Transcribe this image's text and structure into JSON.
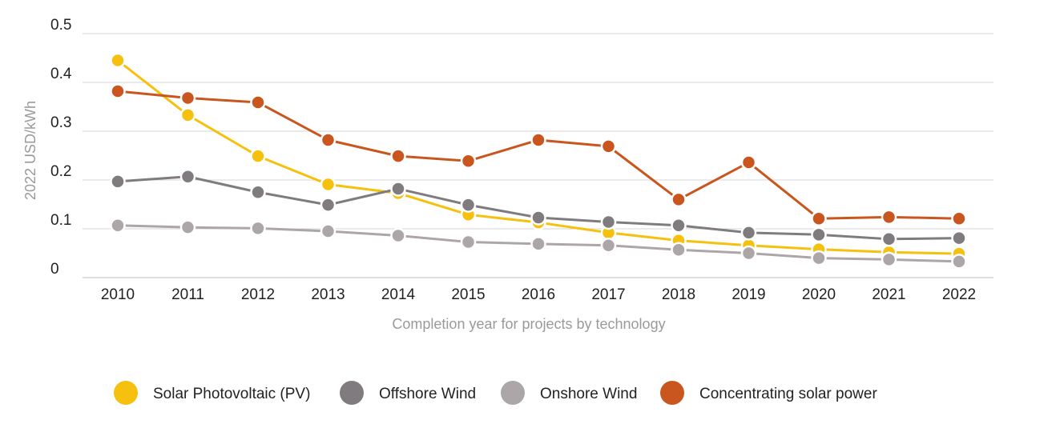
{
  "chart_data": {
    "type": "line",
    "title": "",
    "xlabel": "Completion year for projects by technology",
    "ylabel": "2022 USD/kWh",
    "ylim": [
      0,
      0.5
    ],
    "y_ticks": [
      "0",
      "0.1",
      "0.2",
      "0.3",
      "0.4",
      "0.5"
    ],
    "grid": true,
    "legend_position": "bottom",
    "categories": [
      "2010",
      "2011",
      "2012",
      "2013",
      "2014",
      "2015",
      "2016",
      "2017",
      "2018",
      "2019",
      "2020",
      "2021",
      "2022"
    ],
    "series": [
      {
        "name": "Solar Photovoltaic (PV)",
        "color": "#F5C10E",
        "values": [
          0.445,
          0.333,
          0.249,
          0.191,
          0.173,
          0.129,
          0.113,
          0.092,
          0.076,
          0.066,
          0.058,
          0.052,
          0.049
        ]
      },
      {
        "name": "Offshore Wind",
        "color": "#807B7E",
        "values": [
          0.197,
          0.207,
          0.175,
          0.149,
          0.182,
          0.149,
          0.123,
          0.114,
          0.107,
          0.092,
          0.088,
          0.079,
          0.081
        ]
      },
      {
        "name": "Onshore Wind",
        "color": "#ADA6A9",
        "values": [
          0.107,
          0.103,
          0.101,
          0.095,
          0.086,
          0.073,
          0.069,
          0.066,
          0.057,
          0.05,
          0.04,
          0.037,
          0.033
        ]
      },
      {
        "name": "Concentrating solar power",
        "color": "#C9561E",
        "values": [
          0.382,
          0.368,
          0.359,
          0.282,
          0.249,
          0.239,
          0.282,
          0.269,
          0.16,
          0.236,
          0.121,
          0.124,
          0.121
        ]
      }
    ]
  }
}
